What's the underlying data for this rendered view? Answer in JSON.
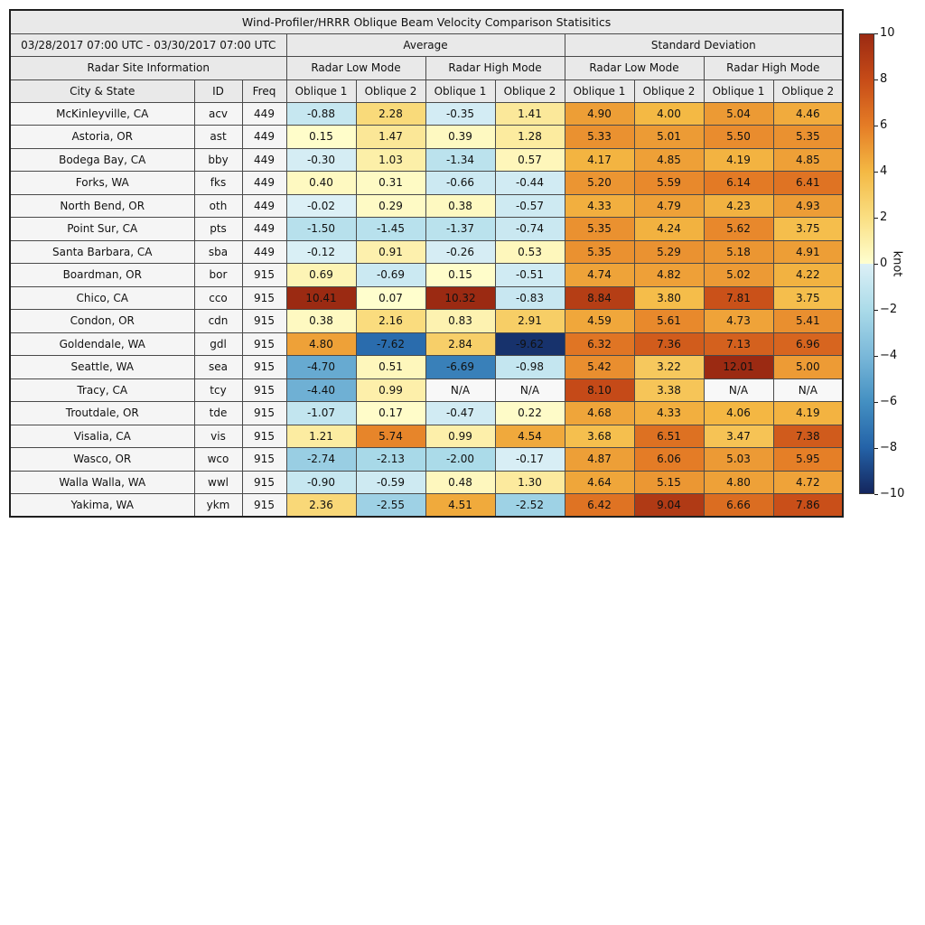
{
  "chart_data": {
    "type": "heatmap",
    "title": "Wind-Profiler/HRRR Oblique Beam Velocity Comparison Statisitics",
    "period": "03/28/2017 07:00 UTC - 03/30/2017 07:00 UTC",
    "group_headers": [
      "Average",
      "Standard Deviation"
    ],
    "site_info_header": "Radar Site Information",
    "mode_headers": [
      "Radar Low Mode",
      "Radar High Mode",
      "Radar Low Mode",
      "Radar High Mode"
    ],
    "column_headers": [
      "City & State",
      "ID",
      "Freq",
      "Oblique 1",
      "Oblique 2",
      "Oblique 1",
      "Oblique 2",
      "Oblique 1",
      "Oblique 2",
      "Oblique 1",
      "Oblique 2"
    ],
    "rows": [
      {
        "city": "McKinleyville, CA",
        "id": "acv",
        "freq": "449",
        "values": [
          "-0.88",
          "2.28",
          "-0.35",
          "1.41",
          "4.90",
          "4.00",
          "5.04",
          "4.46"
        ]
      },
      {
        "city": "Astoria, OR",
        "id": "ast",
        "freq": "449",
        "values": [
          "0.15",
          "1.47",
          "0.39",
          "1.28",
          "5.33",
          "5.01",
          "5.50",
          "5.35"
        ]
      },
      {
        "city": "Bodega Bay, CA",
        "id": "bby",
        "freq": "449",
        "values": [
          "-0.30",
          "1.03",
          "-1.34",
          "0.57",
          "4.17",
          "4.85",
          "4.19",
          "4.85"
        ]
      },
      {
        "city": "Forks, WA",
        "id": "fks",
        "freq": "449",
        "values": [
          "0.40",
          "0.31",
          "-0.66",
          "-0.44",
          "5.20",
          "5.59",
          "6.14",
          "6.41"
        ]
      },
      {
        "city": "North Bend, OR",
        "id": "oth",
        "freq": "449",
        "values": [
          "-0.02",
          "0.29",
          "0.38",
          "-0.57",
          "4.33",
          "4.79",
          "4.23",
          "4.93"
        ]
      },
      {
        "city": "Point Sur, CA",
        "id": "pts",
        "freq": "449",
        "values": [
          "-1.50",
          "-1.45",
          "-1.37",
          "-0.74",
          "5.35",
          "4.24",
          "5.62",
          "3.75"
        ]
      },
      {
        "city": "Santa Barbara, CA",
        "id": "sba",
        "freq": "449",
        "values": [
          "-0.12",
          "0.91",
          "-0.26",
          "0.53",
          "5.35",
          "5.29",
          "5.18",
          "4.91"
        ]
      },
      {
        "city": "Boardman, OR",
        "id": "bor",
        "freq": "915",
        "values": [
          "0.69",
          "-0.69",
          "0.15",
          "-0.51",
          "4.74",
          "4.82",
          "5.02",
          "4.22"
        ]
      },
      {
        "city": "Chico, CA",
        "id": "cco",
        "freq": "915",
        "values": [
          "10.41",
          "0.07",
          "10.32",
          "-0.83",
          "8.84",
          "3.80",
          "7.81",
          "3.75"
        ]
      },
      {
        "city": "Condon, OR",
        "id": "cdn",
        "freq": "915",
        "values": [
          "0.38",
          "2.16",
          "0.83",
          "2.91",
          "4.59",
          "5.61",
          "4.73",
          "5.41"
        ]
      },
      {
        "city": "Goldendale, WA",
        "id": "gdl",
        "freq": "915",
        "values": [
          "4.80",
          "-7.62",
          "2.84",
          "-9.62",
          "6.32",
          "7.36",
          "7.13",
          "6.96"
        ]
      },
      {
        "city": "Seattle, WA",
        "id": "sea",
        "freq": "915",
        "values": [
          "-4.70",
          "0.51",
          "-6.69",
          "-0.98",
          "5.42",
          "3.22",
          "12.01",
          "5.00"
        ]
      },
      {
        "city": "Tracy, CA",
        "id": "tcy",
        "freq": "915",
        "values": [
          "-4.40",
          "0.99",
          "N/A",
          "N/A",
          "8.10",
          "3.38",
          "N/A",
          "N/A"
        ]
      },
      {
        "city": "Troutdale, OR",
        "id": "tde",
        "freq": "915",
        "values": [
          "-1.07",
          "0.17",
          "-0.47",
          "0.22",
          "4.68",
          "4.33",
          "4.06",
          "4.19"
        ]
      },
      {
        "city": "Visalia, CA",
        "id": "vis",
        "freq": "915",
        "values": [
          "1.21",
          "5.74",
          "0.99",
          "4.54",
          "3.68",
          "6.51",
          "3.47",
          "7.38"
        ]
      },
      {
        "city": "Wasco, OR",
        "id": "wco",
        "freq": "915",
        "values": [
          "-2.74",
          "-2.13",
          "-2.00",
          "-0.17",
          "4.87",
          "6.06",
          "5.03",
          "5.95"
        ]
      },
      {
        "city": "Walla Walla, WA",
        "id": "wwl",
        "freq": "915",
        "values": [
          "-0.90",
          "-0.59",
          "0.48",
          "1.30",
          "4.64",
          "5.15",
          "4.80",
          "4.72"
        ]
      },
      {
        "city": "Yakima, WA",
        "id": "ykm",
        "freq": "915",
        "values": [
          "2.36",
          "-2.55",
          "4.51",
          "-2.52",
          "6.42",
          "9.04",
          "6.66",
          "7.86"
        ]
      }
    ],
    "colorbar": {
      "label": "knot",
      "min": -10,
      "max": 10,
      "tick_values": [
        10,
        8,
        6,
        4,
        2,
        0,
        -2,
        -4,
        -6,
        -8,
        -10
      ],
      "legend_position": "right"
    },
    "colormap_anchors": [
      {
        "v": -10,
        "c": "#14265e"
      },
      {
        "v": -8,
        "c": "#2463a8"
      },
      {
        "v": -6,
        "c": "#4490c2"
      },
      {
        "v": -4,
        "c": "#7ab8d9"
      },
      {
        "v": -2,
        "c": "#abdbe9"
      },
      {
        "v": -0.001,
        "c": "#dcf0f6"
      },
      {
        "v": 0.001,
        "c": "#ffffd0"
      },
      {
        "v": 2,
        "c": "#fadf83"
      },
      {
        "v": 4,
        "c": "#f4b944"
      },
      {
        "v": 6,
        "c": "#e57d26"
      },
      {
        "v": 8,
        "c": "#c74c18"
      },
      {
        "v": 10,
        "c": "#9b2a12"
      }
    ]
  },
  "colors": {
    "header_bg": "#e9e9e9",
    "site_bg": "#f5f5f5",
    "na_bg": "#f8f8f8",
    "border": "#4a4a4a",
    "text": "#111111",
    "page_bg": "#ffffff"
  }
}
